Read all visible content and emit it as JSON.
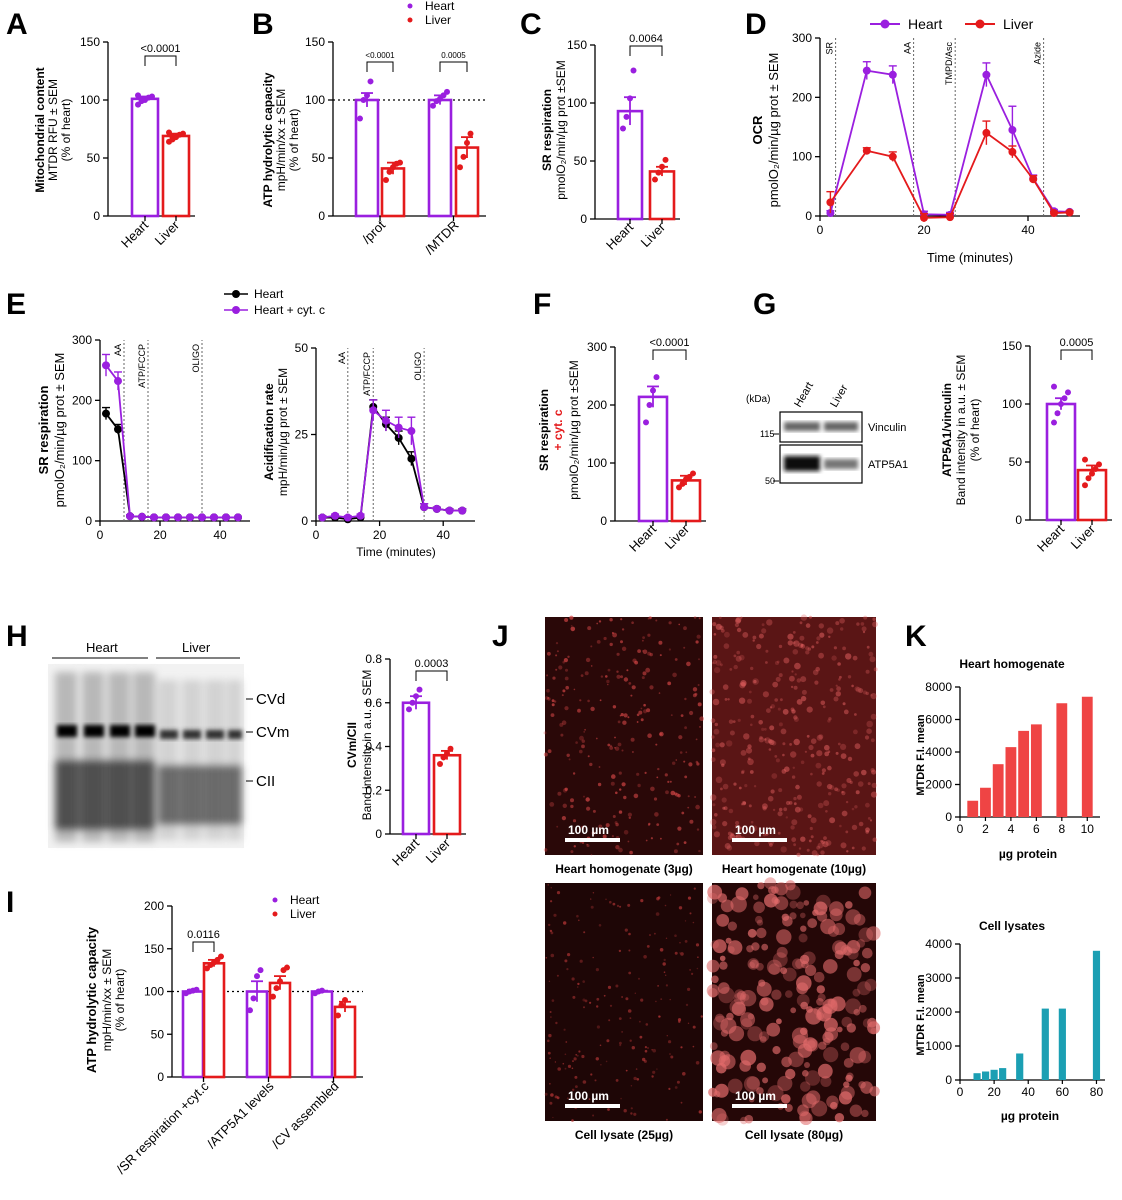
{
  "colors": {
    "heart": "#9a1fdf",
    "liver": "#e41a1c",
    "black": "#000000",
    "cell": "#1b9fb3",
    "red_bar": "#ef4444"
  },
  "panels": {
    "A": "A",
    "B": "B",
    "C": "C",
    "D": "D",
    "E": "E",
    "F": "F",
    "G": "G",
    "H": "H",
    "I": "I",
    "J": "J",
    "K": "K"
  },
  "legend": {
    "heart": "Heart",
    "liver": "Liver",
    "heart_cytc": "Heart + cyt. c"
  },
  "A": {
    "ylabel1": "Mitochondrial content",
    "ylabel2": "MTDR RFU ± SEM",
    "ylabel3": "(% of heart)",
    "p": "<0.0001",
    "cats": [
      "Heart",
      "Liver"
    ]
  },
  "B": {
    "ylabel1": "ATP hydrolytic capacity",
    "ylabel2": "mpH/min/xx ± SEM",
    "ylabel3": "(% of heart)",
    "p1": "<0.0001",
    "p2": "0.0005",
    "cats": [
      "/prot",
      "/MTDR"
    ]
  },
  "C": {
    "ylabel1": "SR respiration",
    "ylabel2": "pmolO₂/min/µg prot ±SEM",
    "p": "0.0064",
    "cats": [
      "Heart",
      "Liver"
    ]
  },
  "D": {
    "ylabel1": "OCR",
    "ylabel2": "pmolO₂/min/µg prot ± SEM",
    "xlabel": "Time (minutes)",
    "markers": [
      "SR",
      "AA",
      "TMPD/Asc",
      "Azide"
    ]
  },
  "E": {
    "ylabel1": "SR respiration",
    "ylabel2": "pmolO₂/min/µg prot ± SEM",
    "markers": [
      "AA",
      "ATP/FCCP",
      "OLIGO"
    ],
    "ylabel_b1": "Acidification rate",
    "ylabel_b2": "mpH/min/µg prot ± SEM",
    "xlabel": "Time (minutes)"
  },
  "F": {
    "ylabel1": "SR respiration",
    "ylabel_red": "+ cyt. c",
    "ylabel2": "pmolO₂/min/µg prot ±SEM",
    "p": "<0.0001",
    "cats": [
      "Heart",
      "Liver"
    ]
  },
  "G": {
    "kda": "(kDa)",
    "heart": "Heart",
    "liver": "Liver",
    "m115": "115",
    "m50": "50",
    "vinculin": "Vinculin",
    "atp5a1": "ATP5A1",
    "ylabel1": "ATP5A1/vinculin",
    "ylabel2": "Band intensity in a.u. ± SEM",
    "ylabel3": "(% of heart)",
    "p": "0.0005",
    "cats": [
      "Heart",
      "Liver"
    ]
  },
  "H": {
    "heart": "Heart",
    "liver": "Liver",
    "cvd": "CVd",
    "cvm": "CVm",
    "cii": "CII",
    "ylabel1": "CVm/CII",
    "ylabel2": "Band intensity in a.u. ± SEM",
    "p": "0.0003",
    "cats": [
      "Heart",
      "Liver"
    ]
  },
  "I": {
    "ylabel1": "ATP hydrolytic capacity",
    "ylabel2": "mpH/min/xx ± SEM",
    "ylabel3": "(% of heart)",
    "p": "0.0116",
    "cats": [
      "/SR respiration +cyt.c",
      "/ATP5A1 levels",
      "/CV assembled"
    ]
  },
  "J": {
    "scale": "100 µm",
    "captions": [
      "Heart homogenate (3µg)",
      "Heart homogenate (10µg)",
      "Cell lysate (25µg)",
      "Cell lysate (80µg)"
    ]
  },
  "K": {
    "title1": "Heart homogenate",
    "title2": "Cell lysates",
    "ylabel": "MTDR F.I. mean",
    "xlabel": "µg protein"
  },
  "chart_data": [
    {
      "panel": "A",
      "type": "bar",
      "categories": [
        "Heart",
        "Liver"
      ],
      "values": [
        101,
        69
      ],
      "sem": [
        2,
        2
      ],
      "ylim": [
        0,
        150
      ],
      "yticks": [
        0,
        50,
        100,
        150
      ],
      "points": [
        [
          96,
          99,
          100,
          102,
          103,
          104,
          101
        ],
        [
          64,
          66,
          68,
          70,
          71,
          72,
          68
        ]
      ]
    },
    {
      "panel": "B",
      "type": "bar",
      "categories": [
        "/prot",
        "/MTDR"
      ],
      "series": [
        {
          "name": "Heart",
          "values": [
            100,
            100
          ],
          "sem": [
            6,
            4
          ]
        },
        {
          "name": "Liver",
          "values": [
            41,
            59
          ],
          "sem": [
            5,
            9
          ]
        }
      ],
      "ylim": [
        0,
        150
      ],
      "yticks": [
        0,
        50,
        100,
        150
      ],
      "reference_line": 100,
      "points": {
        "Heart": [
          [
            84,
            100,
            104,
            116
          ],
          [
            95,
            99,
            101,
            104,
            107
          ]
        ],
        "Liver": [
          [
            31,
            38,
            42,
            45,
            46
          ],
          [
            42,
            51,
            63,
            71
          ]
        ]
      }
    },
    {
      "panel": "C",
      "type": "bar",
      "categories": [
        "Heart",
        "Liver"
      ],
      "values": [
        93,
        41
      ],
      "sem": [
        12,
        4
      ],
      "ylim": [
        0,
        150
      ],
      "yticks": [
        0,
        50,
        100,
        150
      ],
      "points": [
        [
          78,
          88,
          104,
          128
        ],
        [
          34,
          40,
          45,
          51
        ]
      ]
    },
    {
      "panel": "D",
      "type": "line",
      "x": [
        2,
        9,
        14,
        20,
        25,
        32,
        37,
        41,
        45,
        48
      ],
      "xlim": [
        0,
        50
      ],
      "xticks": [
        0,
        20,
        40
      ],
      "ylim": [
        0,
        300
      ],
      "yticks": [
        0,
        100,
        200,
        300
      ],
      "series": [
        {
          "name": "Heart",
          "values": [
            5,
            245,
            238,
            3,
            2,
            238,
            145,
            63,
            8,
            7
          ],
          "sem": [
            4,
            15,
            15,
            5,
            4,
            20,
            40,
            6,
            3,
            2
          ]
        },
        {
          "name": "Liver",
          "values": [
            23,
            110,
            100,
            -3,
            -2,
            140,
            108,
            62,
            5,
            6
          ],
          "sem": [
            18,
            5,
            8,
            7,
            6,
            20,
            10,
            6,
            3,
            2
          ]
        }
      ],
      "markers_x": [
        3,
        18,
        26,
        43
      ]
    },
    {
      "panel": "E-left",
      "type": "line",
      "x": [
        2,
        6,
        10,
        14,
        18,
        22,
        26,
        30,
        34,
        38,
        42,
        46
      ],
      "xlim": [
        0,
        50
      ],
      "xticks": [
        0,
        20,
        40
      ],
      "ylim": [
        0,
        300
      ],
      "yticks": [
        0,
        100,
        200,
        300
      ],
      "series": [
        {
          "name": "Heart",
          "values": [
            178,
            152,
            8,
            7,
            6,
            6,
            6,
            6,
            6,
            6,
            6,
            6
          ],
          "sem": [
            10,
            8,
            2,
            1,
            1,
            1,
            1,
            1,
            1,
            1,
            1,
            1
          ]
        },
        {
          "name": "Heart + cyt. c",
          "values": [
            258,
            232,
            8,
            7,
            6,
            6,
            6,
            6,
            6,
            6,
            6,
            6
          ],
          "sem": [
            18,
            15,
            2,
            1,
            1,
            1,
            1,
            1,
            1,
            1,
            1,
            1
          ]
        }
      ],
      "markers_x": [
        8,
        16,
        34
      ]
    },
    {
      "panel": "E-right",
      "type": "line",
      "x": [
        2,
        6,
        10,
        14,
        18,
        22,
        26,
        30,
        34,
        38,
        42,
        46
      ],
      "xlim": [
        0,
        50
      ],
      "xticks": [
        0,
        20,
        40
      ],
      "ylim": [
        0,
        50
      ],
      "yticks": [
        0,
        25,
        50
      ],
      "series": [
        {
          "name": "Heart",
          "values": [
            1,
            1,
            0.5,
            1,
            33,
            28,
            24,
            18,
            4,
            3.5,
            3,
            3
          ],
          "sem": [
            0.5,
            0.5,
            0.5,
            0.5,
            2,
            2,
            2,
            2,
            1,
            0.5,
            0.5,
            0.5
          ]
        },
        {
          "name": "Heart + cyt. c",
          "values": [
            1,
            1.5,
            1,
            1.5,
            32,
            29,
            27,
            26,
            4,
            3.5,
            3,
            3
          ],
          "sem": [
            0.5,
            0.5,
            0.5,
            0.5,
            3,
            3,
            3,
            4,
            1,
            0.5,
            0.5,
            0.5
          ]
        }
      ],
      "markers_x": [
        10,
        18,
        34
      ]
    },
    {
      "panel": "F",
      "type": "bar",
      "categories": [
        "Heart",
        "Liver"
      ],
      "values": [
        214,
        70
      ],
      "sem": [
        18,
        8
      ],
      "ylim": [
        0,
        300
      ],
      "yticks": [
        0,
        100,
        200,
        300
      ],
      "points": [
        [
          170,
          200,
          225,
          248
        ],
        [
          58,
          64,
          72,
          76,
          82
        ]
      ]
    },
    {
      "panel": "G",
      "type": "bar",
      "categories": [
        "Heart",
        "Liver"
      ],
      "values": [
        100,
        43
      ],
      "sem": [
        5,
        4
      ],
      "ylim": [
        0,
        150
      ],
      "yticks": [
        0,
        50,
        100,
        150
      ],
      "points": [
        [
          84,
          92,
          100,
          105,
          110,
          115
        ],
        [
          30,
          36,
          40,
          44,
          48,
          52
        ]
      ]
    },
    {
      "panel": "H",
      "type": "bar",
      "categories": [
        "Heart",
        "Liver"
      ],
      "values": [
        0.6,
        0.36
      ],
      "sem": [
        0.03,
        0.02
      ],
      "ylim": [
        0,
        0.8
      ],
      "yticks": [
        0,
        0.2,
        0.4,
        0.6,
        0.8
      ],
      "points": [
        [
          0.57,
          0.6,
          0.63,
          0.66
        ],
        [
          0.32,
          0.35,
          0.37,
          0.39
        ]
      ]
    },
    {
      "panel": "I",
      "type": "bar",
      "categories": [
        "/SR respiration +cyt.c",
        "/ATP5A1 levels",
        "/CV assembled"
      ],
      "series": [
        {
          "name": "Heart",
          "values": [
            100,
            100,
            100
          ],
          "sem": [
            2,
            12,
            1
          ]
        },
        {
          "name": "Liver",
          "values": [
            133,
            110,
            82
          ],
          "sem": [
            4,
            8,
            6
          ]
        }
      ],
      "ylim": [
        0,
        200
      ],
      "yticks": [
        0,
        50,
        100,
        150,
        200
      ],
      "reference_line": 100,
      "points": {
        "Heart": [
          [
            98,
            100,
            101,
            102
          ],
          [
            78,
            92,
            118,
            125
          ],
          [
            98,
            100,
            101
          ]
        ],
        "Liver": [
          [
            127,
            131,
            134,
            137,
            141
          ],
          [
            94,
            104,
            112,
            125,
            128
          ],
          [
            72,
            84,
            90
          ]
        ]
      }
    },
    {
      "panel": "K-top",
      "type": "bar",
      "title": "Heart homogenate",
      "x": [
        1,
        2,
        3,
        4,
        5,
        6,
        8,
        10
      ],
      "values": [
        1000,
        1800,
        3250,
        4300,
        5300,
        5700,
        7000,
        7400
      ],
      "xlim": [
        0,
        11
      ],
      "xticks": [
        0,
        2,
        4,
        6,
        8,
        10
      ],
      "ylim": [
        0,
        8000
      ],
      "yticks": [
        0,
        2000,
        4000,
        6000,
        8000
      ],
      "xlabel": "µg protein",
      "ylabel": "MTDR F.I. mean"
    },
    {
      "panel": "K-bottom",
      "type": "bar",
      "title": "Cell lysates",
      "x": [
        10,
        15,
        20,
        25,
        35,
        50,
        60,
        80
      ],
      "values": [
        200,
        250,
        300,
        350,
        780,
        2100,
        2100,
        3800
      ],
      "xlim": [
        0,
        85
      ],
      "xticks": [
        0,
        20,
        40,
        60,
        80
      ],
      "ylim": [
        0,
        4000
      ],
      "yticks": [
        0,
        1000,
        2000,
        3000,
        4000
      ],
      "xlabel": "µg protein",
      "ylabel": "MTDR F.I. mean"
    }
  ]
}
